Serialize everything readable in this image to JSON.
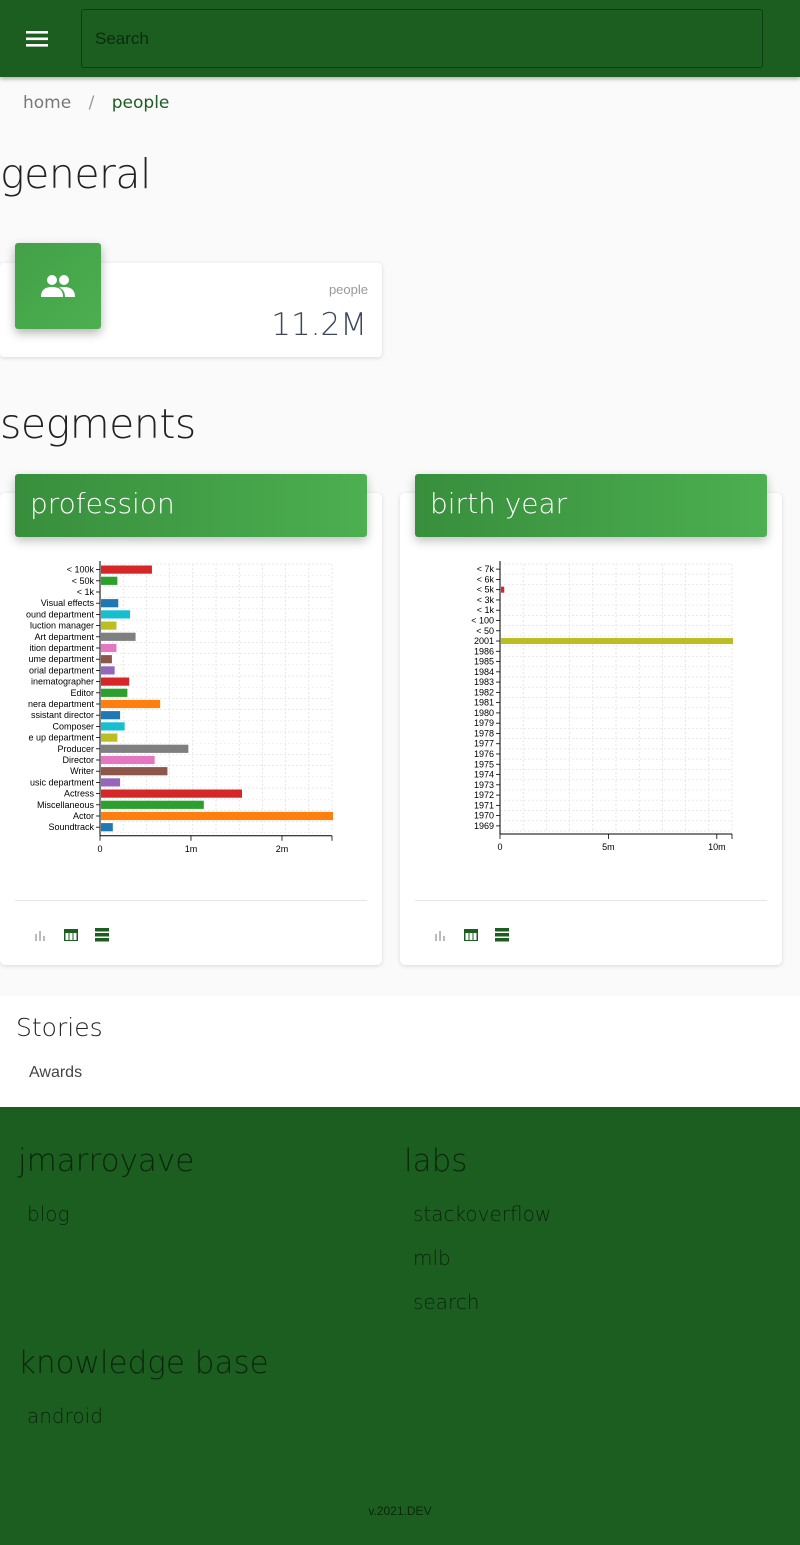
{
  "topbar": {
    "search_placeholder": "Search",
    "menu_icon": "menu-icon"
  },
  "breadcrumb": {
    "home": "home",
    "separator": "/",
    "current": "people"
  },
  "sections": {
    "general": "general",
    "segments": "segments"
  },
  "stat": {
    "label": "people",
    "value": "11.2M",
    "icon": "people-icon"
  },
  "segments": [
    {
      "title": "profession",
      "tools": [
        "bar-chart-icon",
        "table-icon",
        "list-icon"
      ]
    },
    {
      "title": "birth year",
      "tools": [
        "bar-chart-icon",
        "table-icon",
        "list-icon"
      ]
    }
  ],
  "chart_data": [
    {
      "type": "bar",
      "orientation": "horizontal",
      "categories": [
        "< 100k",
        "< 50k",
        "< 1k",
        "Visual effects",
        "ound department",
        "luction manager",
        "Art department",
        "ition department",
        "ume department",
        "orial department",
        "inematographer",
        "Editor",
        "nera department",
        "ssistant director",
        "Composer",
        "e up department",
        "Producer",
        "Director",
        "Writer",
        "usic department",
        "Actress",
        "Miscellaneous",
        "Actor",
        "Soundtrack"
      ],
      "values": [
        560000,
        180000,
        0,
        190000,
        320000,
        170000,
        380000,
        170000,
        120000,
        150000,
        310000,
        290000,
        650000,
        210000,
        260000,
        180000,
        960000,
        590000,
        730000,
        210000,
        1550000,
        1130000,
        2550000,
        130000
      ],
      "colors": [
        "#d62728",
        "#2ca02c",
        "#9467bd",
        "#1f77b4",
        "#17becf",
        "#bcbd22",
        "#7f7f7f",
        "#e377c2",
        "#8c564b",
        "#9467bd",
        "#d62728",
        "#2ca02c",
        "#ff7f0e",
        "#1f77b4",
        "#17becf",
        "#bcbd22",
        "#7f7f7f",
        "#e377c2",
        "#8c564b",
        "#9467bd",
        "#d62728",
        "#2ca02c",
        "#ff7f0e",
        "#1f77b4"
      ],
      "xticks": [
        0,
        1000000,
        2000000
      ],
      "xtick_labels": [
        "0",
        "1m",
        "2m"
      ],
      "xlim": [
        0,
        2550000
      ],
      "grid": true
    },
    {
      "type": "bar",
      "orientation": "horizontal",
      "categories": [
        "< 7k",
        "< 6k",
        "< 5k",
        "< 3k",
        "< 1k",
        "< 100",
        "< 50",
        "2001",
        "1986",
        "1985",
        "1984",
        "1983",
        "1982",
        "1981",
        "1980",
        "1979",
        "1978",
        "1977",
        "1976",
        "1975",
        "1974",
        "1973",
        "1972",
        "1971",
        "1970",
        "1969"
      ],
      "values": [
        0,
        0,
        150000,
        0,
        0,
        0,
        0,
        10700000,
        0,
        0,
        0,
        0,
        0,
        0,
        0,
        0,
        0,
        0,
        0,
        0,
        0,
        0,
        0,
        0,
        0,
        0
      ],
      "colors": [
        "#1f77b4",
        "#ff7f0e",
        "#d62728",
        "#9467bd",
        "#8c564b",
        "#e377c2",
        "#7f7f7f",
        "#bcbd22",
        "#17becf",
        "#1f77b4",
        "#ff7f0e",
        "#2ca02c",
        "#d62728",
        "#9467bd",
        "#8c564b",
        "#e377c2",
        "#7f7f7f",
        "#bcbd22",
        "#17becf",
        "#1f77b4",
        "#ff7f0e",
        "#2ca02c",
        "#d62728",
        "#9467bd",
        "#8c564b",
        "#e377c2"
      ],
      "xticks": [
        0,
        5000000,
        10000000
      ],
      "xtick_labels": [
        "0",
        "5m",
        "10m"
      ],
      "xlim": [
        0,
        10700000
      ],
      "grid": true
    }
  ],
  "stories": {
    "title": "Stories",
    "links": [
      "Awards"
    ]
  },
  "footer": {
    "columns": [
      {
        "title": "jmarroyave",
        "links": [
          "blog"
        ]
      },
      {
        "title": "labs",
        "links": [
          "stackoverflow",
          "mlb",
          "search"
        ]
      },
      {
        "title": "knowledge base",
        "links": [
          "android"
        ]
      }
    ],
    "version": "v.2021.DEV"
  }
}
